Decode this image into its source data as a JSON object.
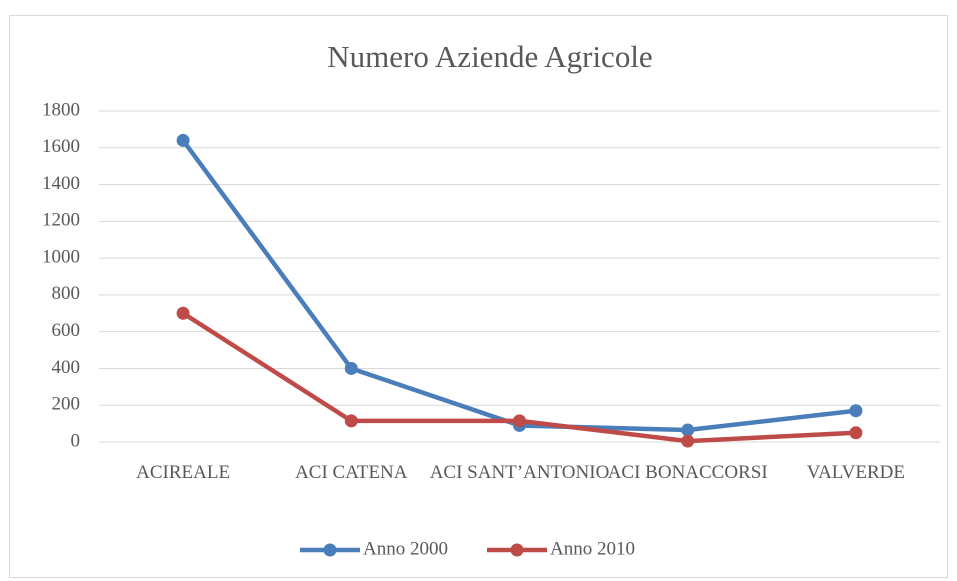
{
  "chart_data": {
    "type": "line",
    "title": "Numero Aziende Agricole",
    "categories": [
      "ACIREALE",
      "ACI CATENA",
      "ACI SANT’ANTONIO",
      "ACI BONACCORSI",
      "VALVERDE"
    ],
    "series": [
      {
        "name": "Anno 2000",
        "color": "#4a7ebb",
        "values": [
          1640,
          400,
          90,
          65,
          170
        ]
      },
      {
        "name": "Anno 2010",
        "color": "#be4b48",
        "values": [
          700,
          115,
          115,
          5,
          50
        ]
      }
    ],
    "ylim": [
      0,
      1800
    ],
    "yticks": [
      0,
      200,
      400,
      600,
      800,
      1000,
      1200,
      1400,
      1600,
      1800
    ],
    "grid": true,
    "legend": "bottom"
  }
}
